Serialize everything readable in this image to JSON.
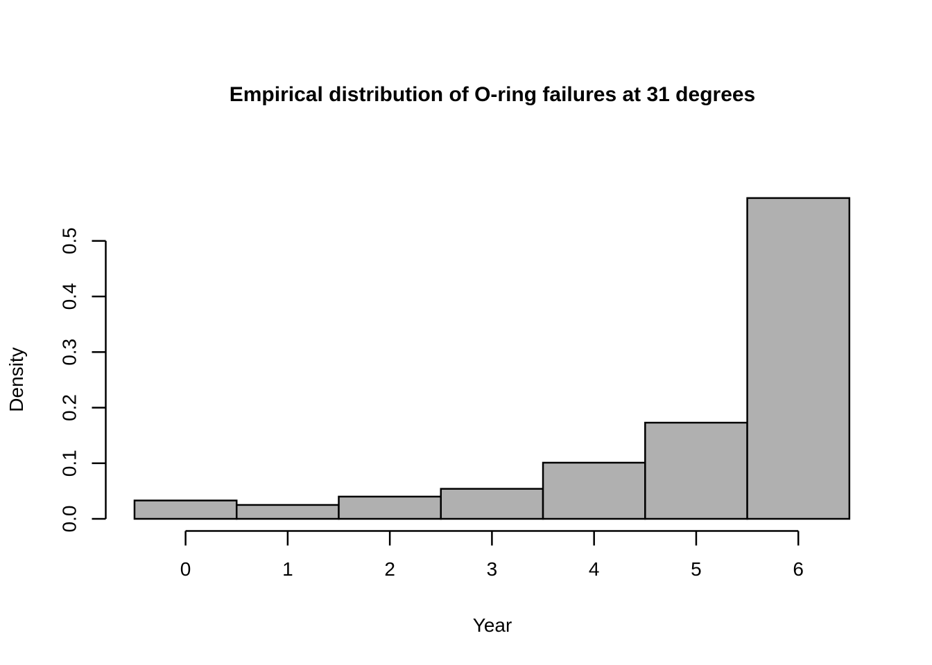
{
  "figure": {
    "background": "#ffffff",
    "text_color": "#000000"
  },
  "chart_data": {
    "type": "bar",
    "variant": "histogram",
    "title": "Empirical distribution of O-ring failures at 31 degrees",
    "xlabel": "Year",
    "ylabel": "Density",
    "categories": [
      0,
      1,
      2,
      3,
      4,
      5,
      6
    ],
    "values": [
      0.033,
      0.025,
      0.04,
      0.054,
      0.101,
      0.173,
      0.577
    ],
    "bin_width": 1,
    "x_ticks": [
      "0",
      "1",
      "2",
      "3",
      "4",
      "5",
      "6"
    ],
    "y_ticks": [
      "0.0",
      "0.1",
      "0.2",
      "0.3",
      "0.4",
      "0.5"
    ],
    "xlim": [
      -0.5,
      6.5
    ],
    "ylim": [
      0,
      0.5
    ],
    "grid": false,
    "bar_fill": "#b0b0b0",
    "bar_border": "#000000",
    "axis_color": "#000000"
  }
}
